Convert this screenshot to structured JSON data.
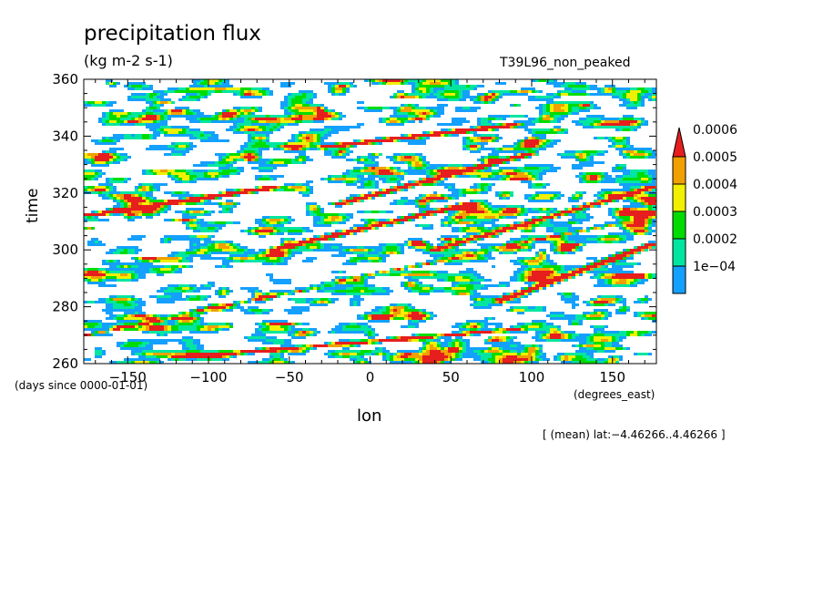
{
  "chart_data": {
    "type": "heatmap",
    "title": "precipitation flux",
    "units": "(kg m-2 s-1)",
    "run_label": "T39L96_non_peaked",
    "xlabel": "lon",
    "ylabel": "time",
    "x_units": "(degrees_east)",
    "y_units": "(days since 0000-01-01)",
    "xlim": [
      -177.2,
      177.2
    ],
    "ylim": [
      260,
      360
    ],
    "x_ticks": [
      -150,
      -100,
      -50,
      0,
      50,
      100,
      150
    ],
    "y_ticks": [
      260,
      280,
      300,
      320,
      340,
      360
    ],
    "x_tick_labels": [
      "−150",
      "−100",
      "−50",
      "0",
      "50",
      "100",
      "150"
    ],
    "y_tick_labels": [
      "260",
      "280",
      "300",
      "320",
      "340",
      "360"
    ],
    "colorbar": {
      "levels": [
        0.0001,
        0.0002,
        0.0003,
        0.0004,
        0.0005,
        0.0006
      ],
      "level_labels": [
        "1e−04",
        "0.0002",
        "0.0003",
        "0.0004",
        "0.0005",
        "0.0006"
      ],
      "colors": [
        "#14a0ff",
        "#00e6a0",
        "#00dc00",
        "#f0f000",
        "#f0a000",
        "#e61e1e"
      ],
      "extend": "max"
    },
    "footnote": "[ (mean) lat:−4.46266..4.46266 ]",
    "grid": false,
    "field_description": "Hovmoller (longitude-time) diagram of precipitation flux; scattered convective blobs and eastward-propagating streaks"
  }
}
